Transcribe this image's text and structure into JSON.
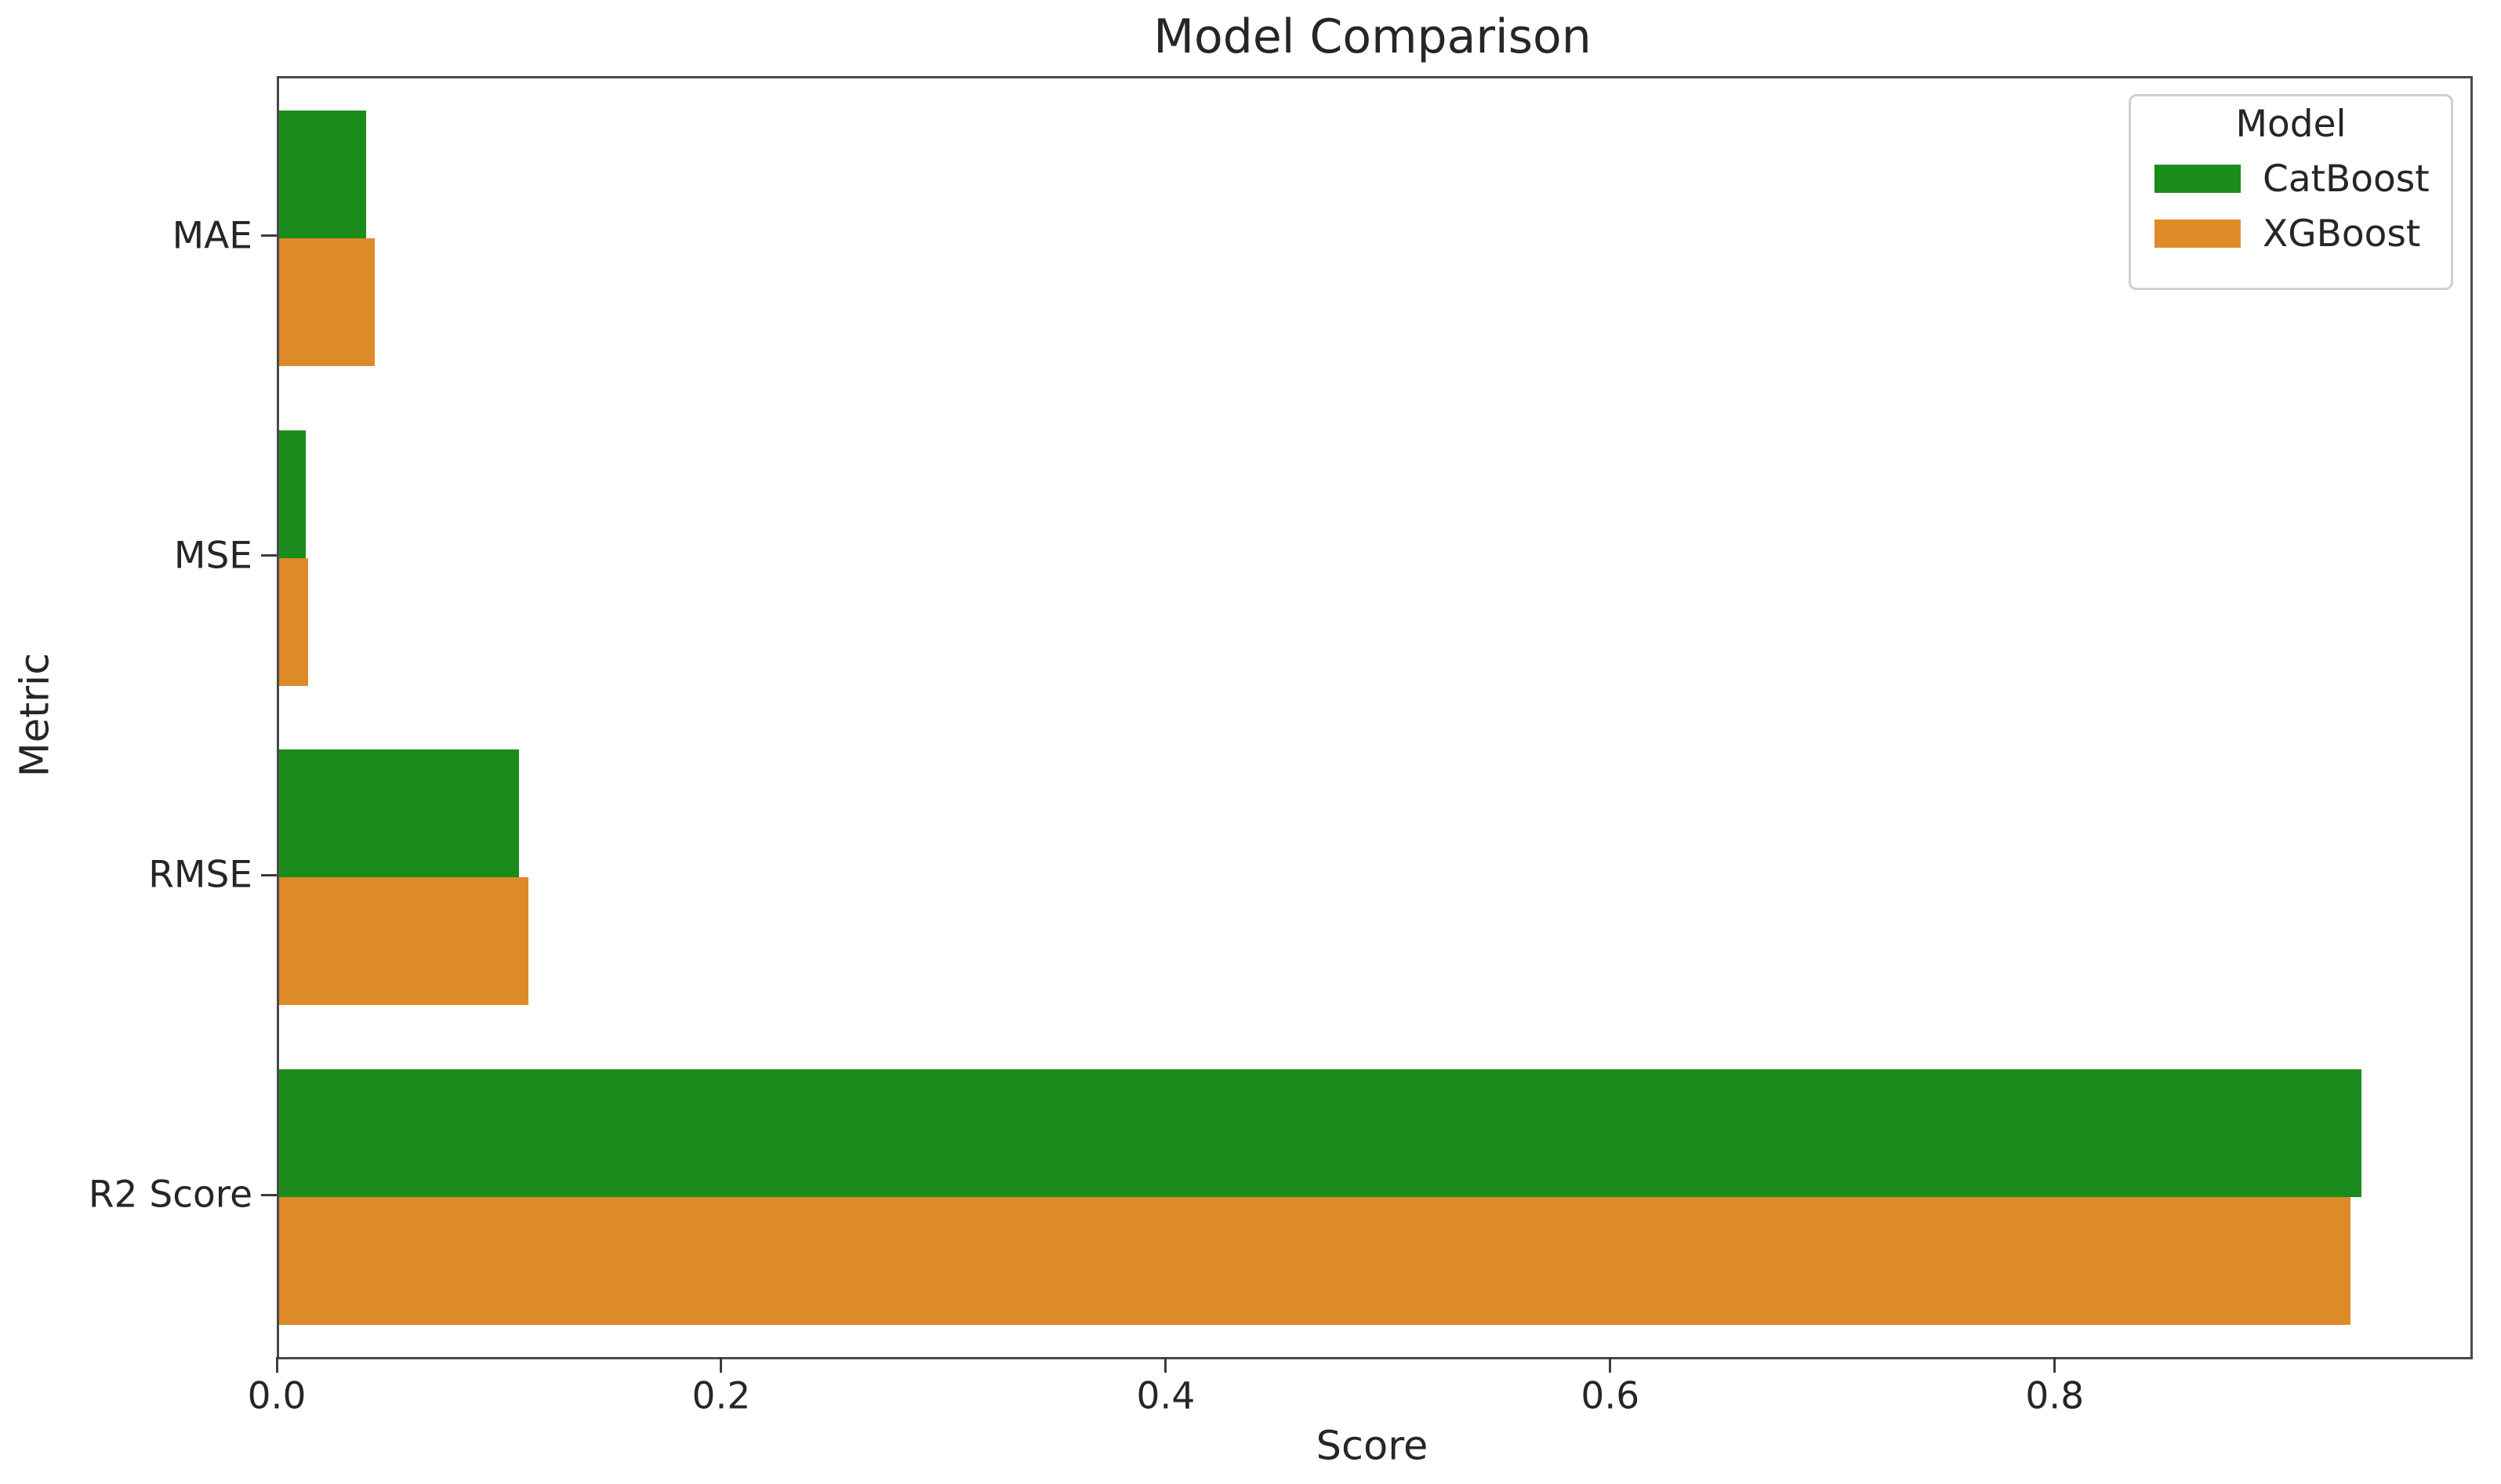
{
  "figure": {
    "title": "Model Comparison",
    "xlabel": "Score",
    "ylabel": "Metric"
  },
  "legend": {
    "title": "Model",
    "labels": [
      "CatBoost",
      "XGBoost"
    ]
  },
  "chart_data": {
    "type": "bar",
    "orientation": "horizontal",
    "title": "Model Comparison",
    "xlabel": "Score",
    "ylabel": "Metric",
    "categories": [
      "MAE",
      "MSE",
      "RMSE",
      "R2 Score"
    ],
    "series": [
      {
        "name": "CatBoost",
        "color": "#1b8c1b",
        "values": [
          0.039,
          0.012,
          0.108,
          0.937
        ]
      },
      {
        "name": "XGBoost",
        "color": "#dd8b28",
        "values": [
          0.043,
          0.013,
          0.112,
          0.932
        ]
      }
    ],
    "x_ticks": [
      0.0,
      0.2,
      0.4,
      0.6,
      0.8
    ],
    "x_tick_labels": [
      "0.0",
      "0.2",
      "0.4",
      "0.6",
      "0.8"
    ],
    "xlim": [
      0,
      0.986
    ],
    "grid": false,
    "legend_title": "Model",
    "legend_position": "upper right",
    "colors": {
      "catboost_green": "#1b8c1b",
      "xgboost_orange": "#dd8b28",
      "spine_gray": "#4a4a4a",
      "text": "#262626"
    }
  }
}
